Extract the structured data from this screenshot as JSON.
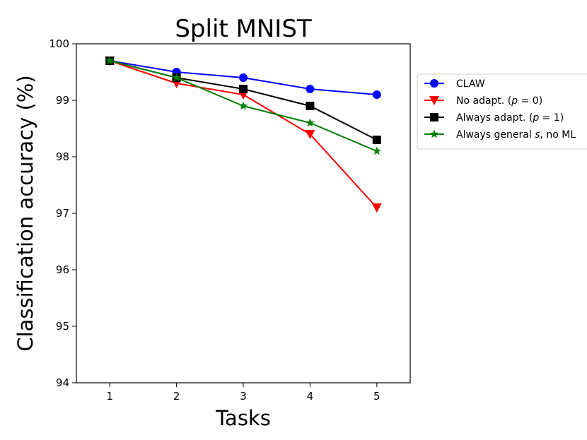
{
  "chart_data": {
    "type": "line",
    "title": "Split MNIST",
    "xlabel": "Tasks",
    "ylabel": "Classification accuracy (%)",
    "x": [
      1,
      2,
      3,
      4,
      5
    ],
    "x_ticks": [
      "1",
      "2",
      "3",
      "4",
      "5"
    ],
    "y_ticks": [
      "94",
      "95",
      "96",
      "97",
      "98",
      "99",
      "100"
    ],
    "xlim": [
      0.5,
      5.5
    ],
    "ylim": [
      94,
      100
    ],
    "grid": false,
    "legend_placement": "outside-right",
    "series": [
      {
        "name": "CLAW",
        "label_parts": [
          {
            "text": "CLAW",
            "italic": false
          }
        ],
        "values": [
          99.7,
          99.5,
          99.4,
          99.2,
          99.1
        ],
        "color": "#0000ff",
        "marker": "circle"
      },
      {
        "name": "No adapt. (p = 0)",
        "label_parts": [
          {
            "text": "No adapt. (",
            "italic": false
          },
          {
            "text": "p",
            "italic": true
          },
          {
            "text": " = 0)",
            "italic": false
          }
        ],
        "values": [
          99.7,
          99.3,
          99.1,
          98.4,
          97.1
        ],
        "color": "#ff0000",
        "marker": "triangle-down"
      },
      {
        "name": "Always adapt. (p = 1)",
        "label_parts": [
          {
            "text": "Always adapt. (",
            "italic": false
          },
          {
            "text": "p",
            "italic": true
          },
          {
            "text": " = 1)",
            "italic": false
          }
        ],
        "values": [
          99.7,
          99.4,
          99.2,
          98.9,
          98.3
        ],
        "color": "#000000",
        "marker": "square"
      },
      {
        "name": "Always general s, no ML",
        "label_parts": [
          {
            "text": "Always general ",
            "italic": false
          },
          {
            "text": "s",
            "italic": true
          },
          {
            "text": ", no ML",
            "italic": false
          }
        ],
        "values": [
          99.7,
          99.4,
          98.9,
          98.6,
          98.1
        ],
        "color": "#008000",
        "marker": "star"
      }
    ]
  }
}
